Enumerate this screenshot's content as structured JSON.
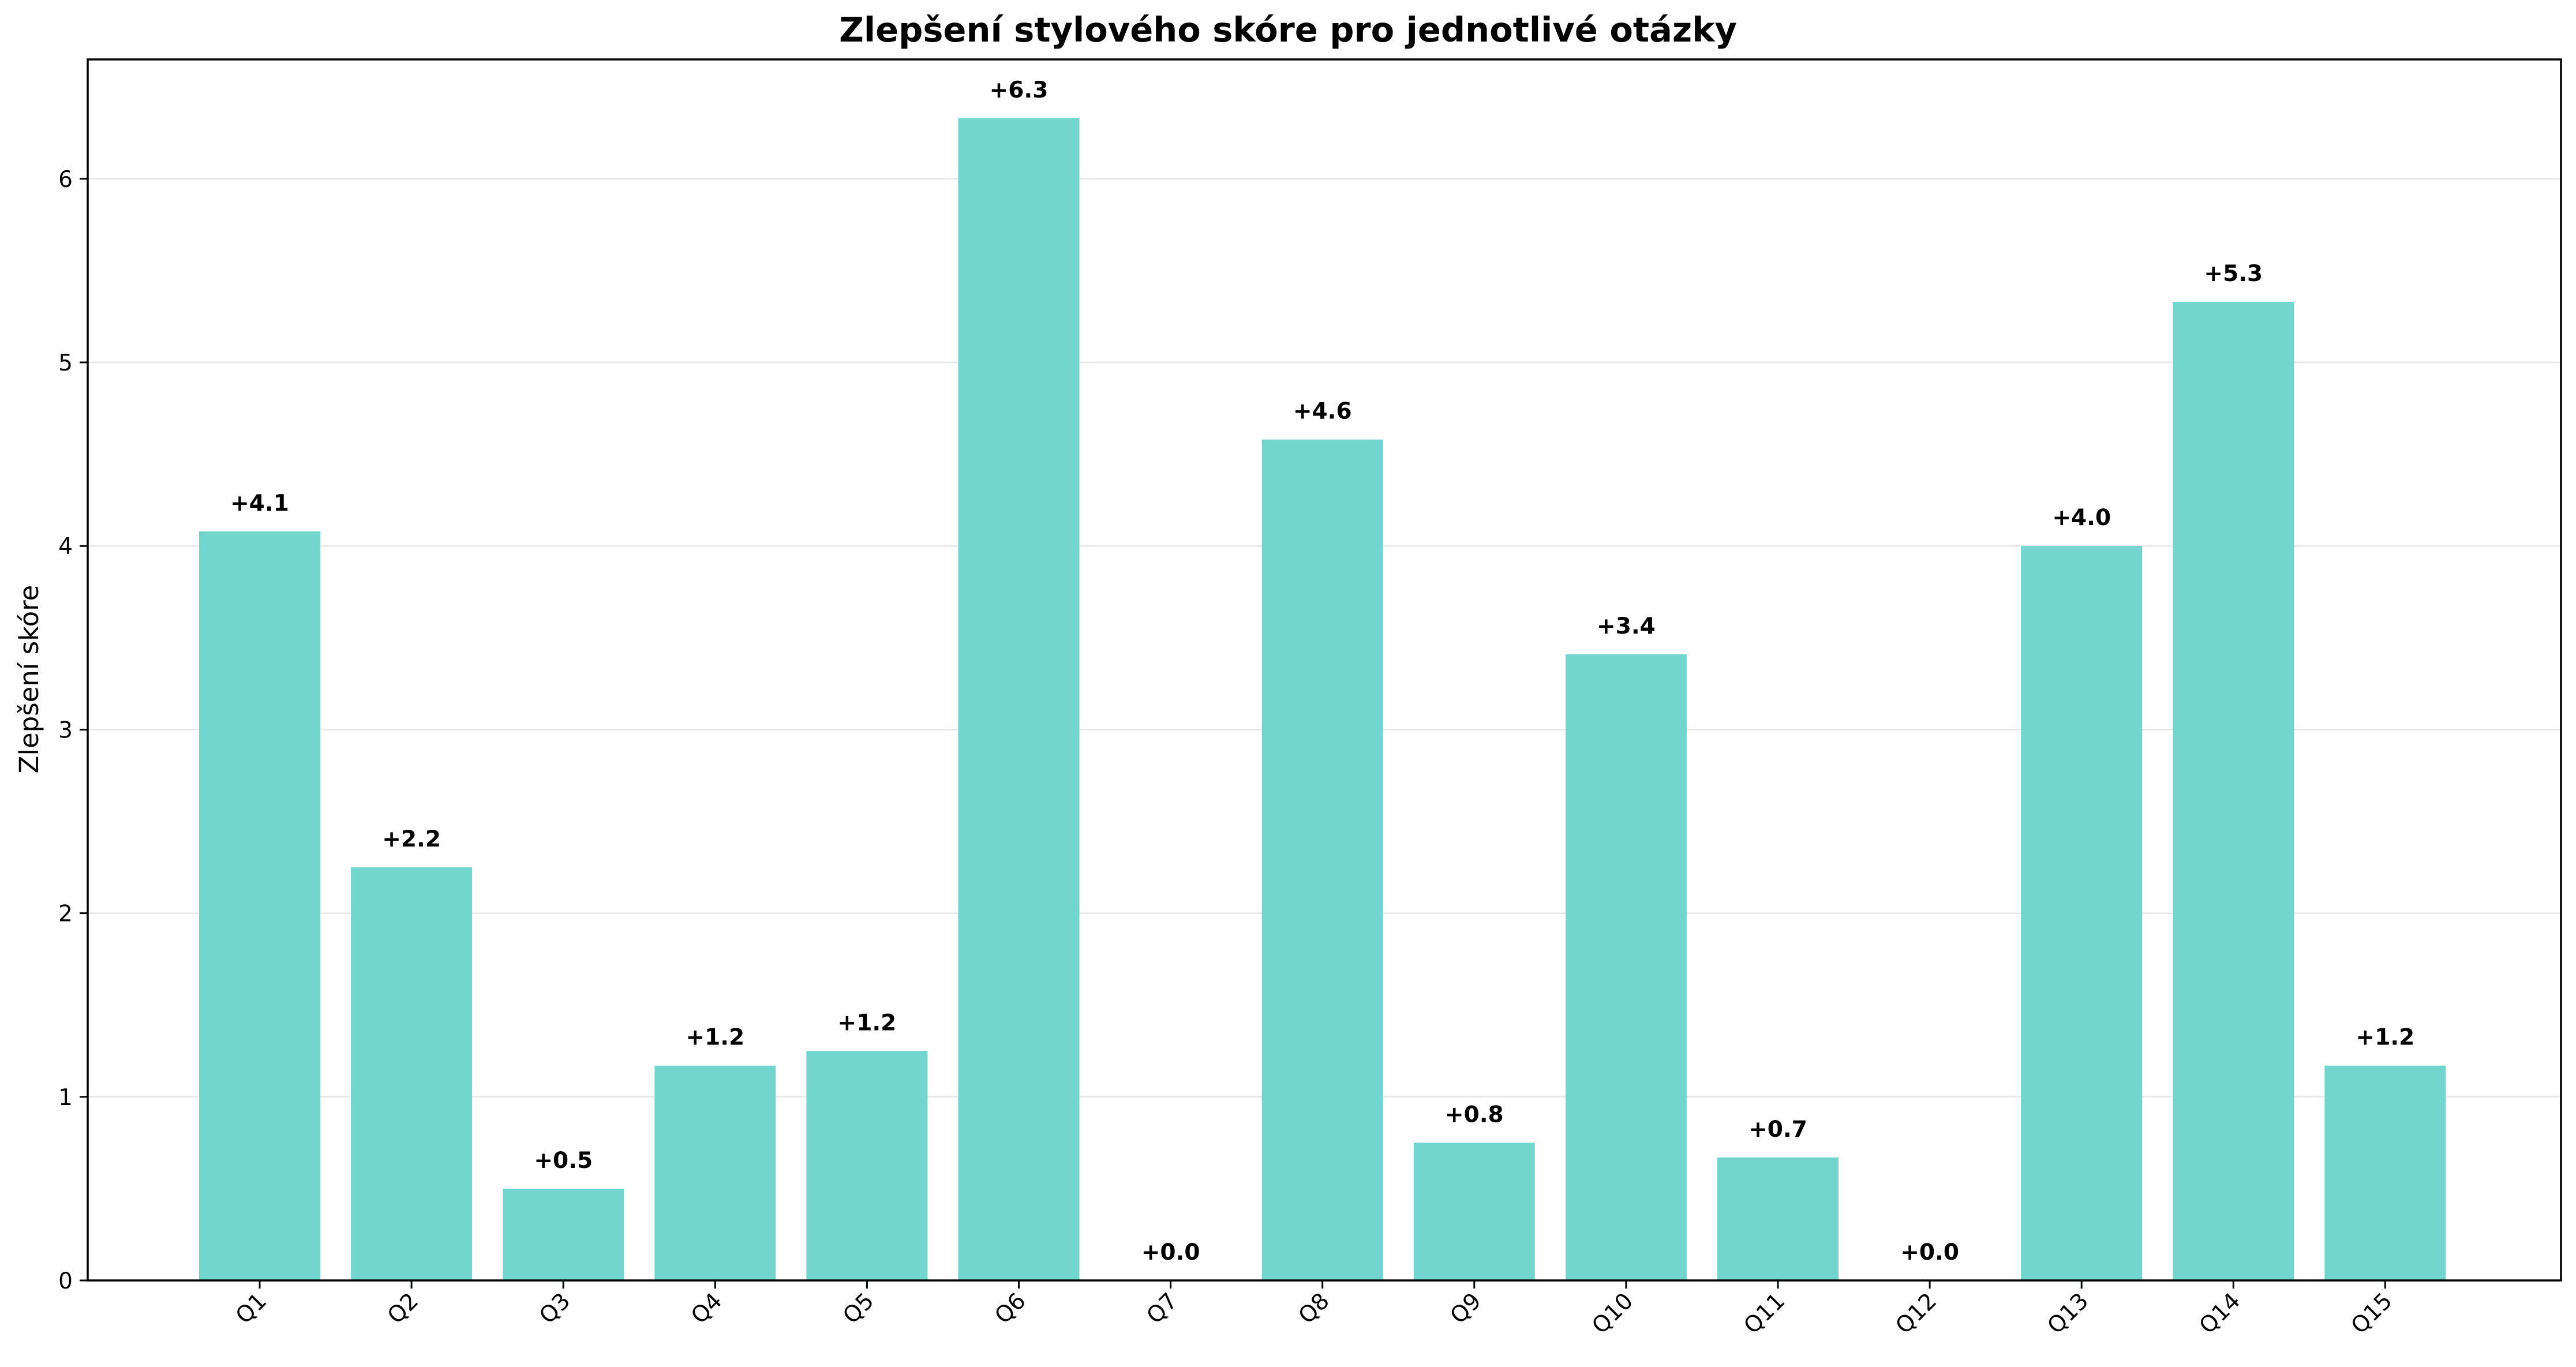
{
  "chart_data": {
    "type": "bar",
    "title": "Zlepšení stylového skóre pro jednotlivé otázky",
    "xlabel": "",
    "ylabel": "Zlepšení skóre",
    "categories": [
      "Q1",
      "Q2",
      "Q3",
      "Q4",
      "Q5",
      "Q6",
      "Q7",
      "Q8",
      "Q9",
      "Q10",
      "Q11",
      "Q12",
      "Q13",
      "Q14",
      "Q15"
    ],
    "values": [
      4.08,
      2.25,
      0.5,
      1.17,
      1.25,
      6.33,
      0.0,
      4.58,
      0.75,
      3.41,
      0.67,
      0.0,
      4.0,
      5.33,
      1.17
    ],
    "data_labels": [
      "+4.1",
      "+2.2",
      "+0.5",
      "+1.2",
      "+1.2",
      "+6.3",
      "+0.0",
      "+4.6",
      "+0.8",
      "+3.4",
      "+0.7",
      "+0.0",
      "+4.0",
      "+5.3",
      "+1.2"
    ],
    "ylim": [
      0,
      6.65
    ],
    "yticks": [
      0,
      1,
      2,
      3,
      4,
      5,
      6
    ],
    "grid": "y",
    "bar_color": "#72d5ce",
    "legend": "none"
  }
}
